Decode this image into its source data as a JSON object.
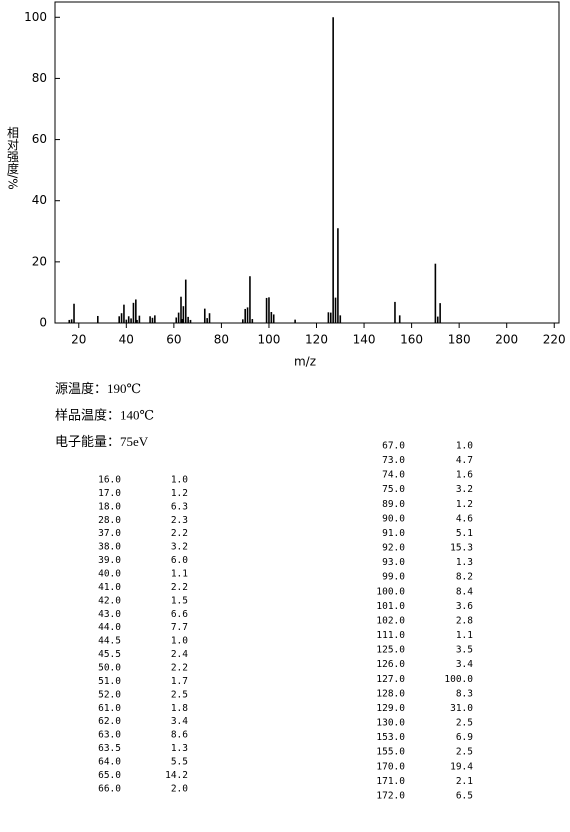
{
  "chart_data": {
    "type": "bar",
    "x_label": "m/z",
    "y_label": "相对强度/%",
    "color": "#000000",
    "xlim": [
      10,
      222
    ],
    "xticks": [
      20,
      40,
      60,
      80,
      100,
      120,
      140,
      160,
      180,
      200,
      220
    ],
    "ylim": [
      0,
      105
    ],
    "yticks": [
      0,
      20,
      40,
      60,
      80,
      100
    ],
    "x": [
      16,
      17,
      18,
      28,
      37,
      38,
      39,
      40,
      41,
      42,
      43,
      44,
      44.5,
      45.5,
      50,
      51,
      52,
      61,
      62,
      63,
      63.5,
      64,
      65,
      66,
      67,
      73,
      74,
      75,
      89,
      90,
      91,
      92,
      93,
      99,
      100,
      101,
      102,
      111,
      125,
      126,
      127,
      128,
      129,
      130,
      153,
      155,
      170,
      171,
      172
    ],
    "values": [
      1.0,
      1.2,
      6.3,
      2.3,
      2.2,
      3.2,
      6.0,
      1.1,
      2.2,
      1.5,
      6.6,
      7.7,
      1.0,
      2.4,
      2.2,
      1.7,
      2.5,
      1.8,
      3.4,
      8.6,
      1.3,
      5.5,
      14.2,
      2.0,
      1.0,
      4.7,
      1.6,
      3.2,
      1.2,
      4.6,
      5.1,
      15.3,
      1.3,
      8.2,
      8.4,
      3.6,
      2.8,
      1.1,
      3.5,
      3.4,
      100.0,
      8.3,
      31.0,
      2.5,
      6.9,
      2.5,
      19.4,
      2.1,
      6.5
    ]
  },
  "conditions": [
    "源温度：190℃",
    "样品温度：140℃",
    "电子能量：75eV"
  ],
  "peak_table": {
    "columns": [
      [
        [
          "16.0",
          "1.0"
        ],
        [
          "17.0",
          "1.2"
        ],
        [
          "18.0",
          "6.3"
        ],
        [
          "28.0",
          "2.3"
        ],
        [
          "37.0",
          "2.2"
        ],
        [
          "38.0",
          "3.2"
        ],
        [
          "39.0",
          "6.0"
        ],
        [
          "40.0",
          "1.1"
        ],
        [
          "41.0",
          "2.2"
        ],
        [
          "42.0",
          "1.5"
        ],
        [
          "43.0",
          "6.6"
        ],
        [
          "44.0",
          "7.7"
        ],
        [
          "44.5",
          "1.0"
        ],
        [
          "45.5",
          "2.4"
        ],
        [
          "50.0",
          "2.2"
        ],
        [
          "51.0",
          "1.7"
        ],
        [
          "52.0",
          "2.5"
        ],
        [
          "61.0",
          "1.8"
        ],
        [
          "62.0",
          "3.4"
        ],
        [
          "63.0",
          "8.6"
        ],
        [
          "63.5",
          "1.3"
        ],
        [
          "64.0",
          "5.5"
        ],
        [
          "65.0",
          "14.2"
        ],
        [
          "66.0",
          "2.0"
        ]
      ],
      [
        [
          "67.0",
          "1.0"
        ],
        [
          "73.0",
          "4.7"
        ],
        [
          "74.0",
          "1.6"
        ],
        [
          "75.0",
          "3.2"
        ],
        [
          "89.0",
          "1.2"
        ],
        [
          "90.0",
          "4.6"
        ],
        [
          "91.0",
          "5.1"
        ],
        [
          "92.0",
          "15.3"
        ],
        [
          "93.0",
          "1.3"
        ],
        [
          "99.0",
          "8.2"
        ],
        [
          "100.0",
          "8.4"
        ],
        [
          "101.0",
          "3.6"
        ],
        [
          "102.0",
          "2.8"
        ],
        [
          "111.0",
          "1.1"
        ],
        [
          "125.0",
          "3.5"
        ],
        [
          "126.0",
          "3.4"
        ],
        [
          "127.0",
          "100.0"
        ],
        [
          "128.0",
          "8.3"
        ],
        [
          "129.0",
          "31.0"
        ],
        [
          "130.0",
          "2.5"
        ],
        [
          "153.0",
          "6.9"
        ],
        [
          "155.0",
          "2.5"
        ],
        [
          "170.0",
          "19.4"
        ],
        [
          "171.0",
          "2.1"
        ],
        [
          "172.0",
          "6.5"
        ]
      ]
    ]
  }
}
